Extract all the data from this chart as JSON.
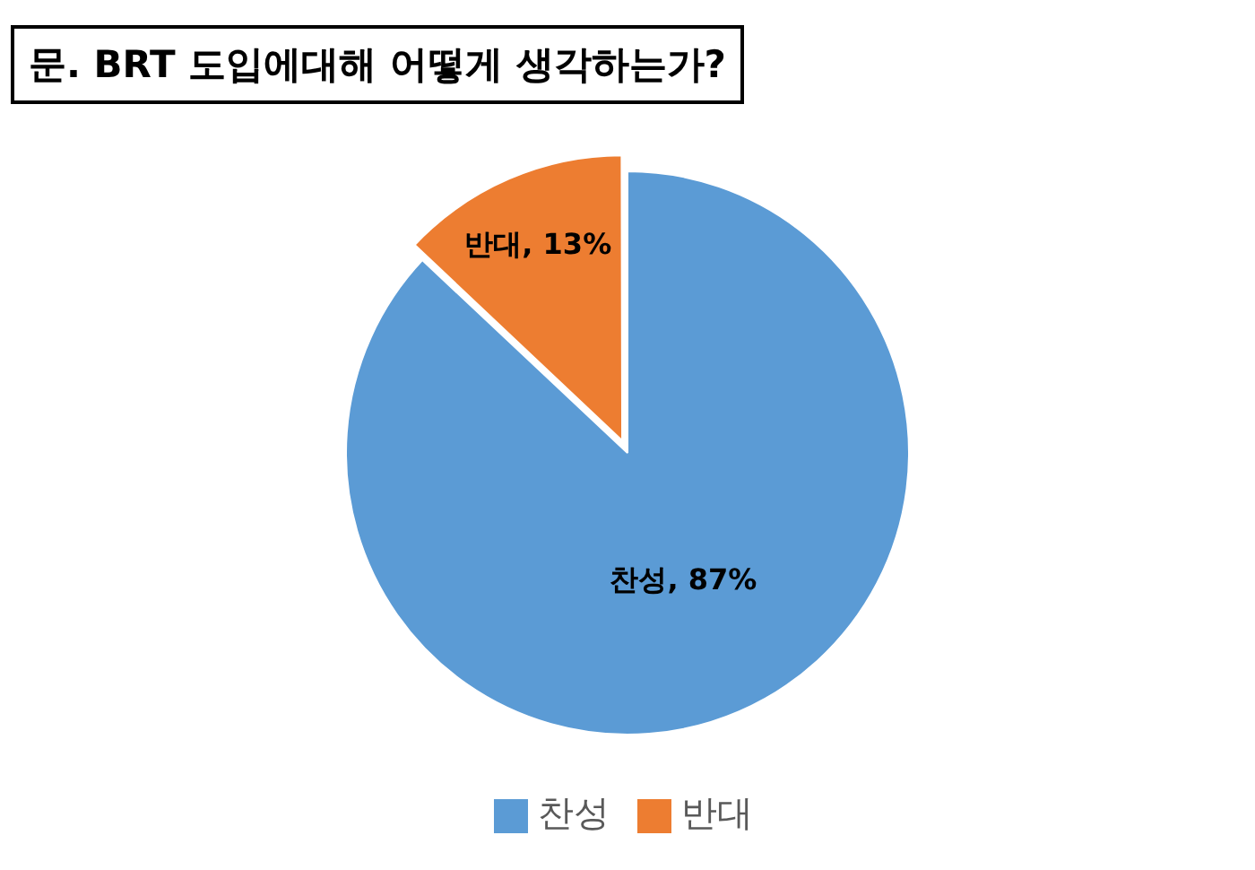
{
  "chart_data": {
    "type": "pie",
    "title": "문.  BRT 도입에대해 어떻게 생각하는가?",
    "categories": [
      "찬성",
      "반대"
    ],
    "values": [
      87,
      13
    ],
    "colors": [
      "#5b9bd5",
      "#ed7d31"
    ],
    "value_labels": [
      "찬성, 87%",
      "반대, 13%"
    ],
    "legend": "bottom"
  }
}
